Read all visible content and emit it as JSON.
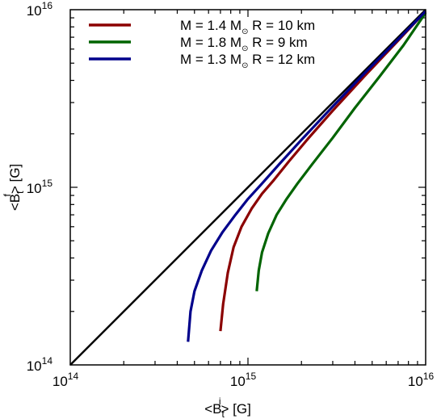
{
  "chart_data": {
    "type": "line",
    "xscale": "log",
    "yscale": "log",
    "xlim": [
      100000000000000.0,
      1e+16
    ],
    "ylim": [
      100000000000000.0,
      1e+16
    ],
    "xlabel": {
      "pre": "<B",
      "sub": "t",
      "sup": "i",
      "post": "> [G]"
    },
    "ylabel": {
      "pre": "<B",
      "sub": "t",
      "sup": "f",
      "post": "> [G]"
    },
    "x_ticklabels": [
      {
        "value": 100000000000000.0,
        "base": "10",
        "exp": "14"
      },
      {
        "value": 1000000000000000.0,
        "base": "10",
        "exp": "15"
      },
      {
        "value": 1e+16,
        "base": "10",
        "exp": "16"
      }
    ],
    "y_ticklabels": [
      {
        "value": 100000000000000.0,
        "base": "10",
        "exp": "14"
      },
      {
        "value": 1000000000000000.0,
        "base": "10",
        "exp": "15"
      },
      {
        "value": 1e+16,
        "base": "10",
        "exp": "16"
      }
    ],
    "grid": false,
    "legend_position": "top-left",
    "reference_line": {
      "color": "#000000",
      "x": [
        100000000000000.0,
        1e+16
      ],
      "y": [
        100000000000000.0,
        1e+16
      ]
    },
    "series": [
      {
        "name": "M = 1.4 M⊙  R = 10 km",
        "color": "#8b0000",
        "x": [
          700000000000000.0,
          725000000000000.0,
          770000000000000.0,
          830000000000000.0,
          920000000000000.0,
          1050000000000000.0,
          1200000000000000.0,
          1400000000000000.0,
          1700000000000000.0,
          2200000000000000.0,
          3000000000000000.0,
          4500000000000000.0,
          7000000000000000.0,
          1e+16
        ],
        "y": [
          155000000000000.0,
          220000000000000.0,
          330000000000000.0,
          460000000000000.0,
          600000000000000.0,
          760000000000000.0,
          920000000000000.0,
          1100000000000000.0,
          1400000000000000.0,
          1900000000000000.0,
          2700000000000000.0,
          4200000000000000.0,
          6700000000000000.0,
          9800000000000000.0
        ]
      },
      {
        "name": "M = 1.8 M⊙  R =   9 km",
        "color": "#006400",
        "x": [
          1120000000000000.0,
          1150000000000000.0,
          1200000000000000.0,
          1300000000000000.0,
          1450000000000000.0,
          1650000000000000.0,
          1900000000000000.0,
          2300000000000000.0,
          3000000000000000.0,
          4000000000000000.0,
          5500000000000000.0,
          7500000000000000.0,
          1e+16
        ],
        "y": [
          260000000000000.0,
          340000000000000.0,
          430000000000000.0,
          550000000000000.0,
          700000000000000.0,
          860000000000000.0,
          1050000000000000.0,
          1350000000000000.0,
          1900000000000000.0,
          2800000000000000.0,
          4200000000000000.0,
          6300000000000000.0,
          9600000000000000.0
        ]
      },
      {
        "name": "M = 1.3 M⊙  R = 12 km",
        "color": "#00008b",
        "x": [
          460000000000000.0,
          475000000000000.0,
          500000000000000.0,
          550000000000000.0,
          620000000000000.0,
          720000000000000.0,
          850000000000000.0,
          1000000000000000.0,
          1200000000000000.0,
          1500000000000000.0,
          2000000000000000.0,
          3000000000000000.0,
          4500000000000000.0,
          7000000000000000.0,
          1e+16
        ],
        "y": [
          135000000000000.0,
          200000000000000.0,
          260000000000000.0,
          340000000000000.0,
          440000000000000.0,
          560000000000000.0,
          700000000000000.0,
          860000000000000.0,
          1050000000000000.0,
          1350000000000000.0,
          1850000000000000.0,
          2850000000000000.0,
          4350000000000000.0,
          6800000000000000.0,
          9800000000000000.0
        ]
      }
    ],
    "legend": [
      {
        "pre": "M = 1.4 M",
        "post": "  R = 10 km",
        "color": "#8b0000"
      },
      {
        "pre": "M = 1.8 M",
        "post": "  R =   9 km",
        "color": "#006400"
      },
      {
        "pre": "M = 1.3 M",
        "post": "  R = 12 km",
        "color": "#00008b"
      }
    ]
  }
}
